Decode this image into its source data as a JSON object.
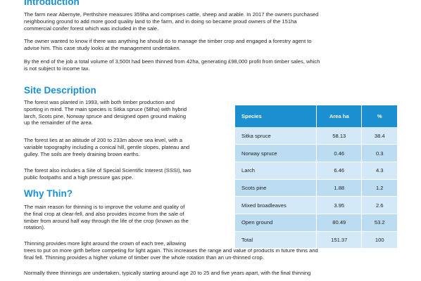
{
  "intro": {
    "heading": "Introduction",
    "p1": [
      "The farm near Abernyte, Perthshire measures 359ha and comprises cattle, sheep and arable. In 2017 the owners purchased",
      "neighbouring ground to add more good quality land to the farm, and in doing so became proud owners of the 151ha",
      "commercial conifer forest which was included in the sale."
    ],
    "p2": [
      "The owner wanted to know if there was anything he should do to manage the timber crop and engaged a forestry agent to",
      "advise him. This case study looks at the management undertaken."
    ],
    "p3": [
      "By the end of the job a total volume of 3,500t had been thinned from 42ha, generating £98,000 profit from timber sales, which",
      "is not subject to income tax."
    ]
  },
  "site": {
    "heading": "Site Description",
    "p1": [
      "The forest was planted in 1993, with both timber production and",
      "sporting in mind.  The main species is Sitka spruce (58ha) with hybrid",
      "larch, Scots pine, Norway spruce and designed open ground making",
      "up the remainder of the area."
    ],
    "p2": [
      "The forest lies at an altitude of 200 to 233m above sea level, with a",
      "variable topography including a conical hill, gentle slopes, plateau and",
      "gulley.  The soils are freely draining brown earths."
    ],
    "p3": [
      "The forest also includes a Site of Special Scientific Interest (SSSI), two",
      "public footpaths and a high pressure gas pipe."
    ]
  },
  "thin": {
    "heading": "Why Thin?",
    "p1": [
      "The main reason for thinning is to improve the volume and quality of",
      "the final crop at clear-fell, and also provides income from the sale of",
      "timber from around half way through the life of the crop (known as the",
      "rotation)."
    ],
    "p2": [
      "Thinning provides more light around the crown of each tree, allowing",
      "trees to put on more girth before competing for light again. This increases the range and value of products in future thins and",
      "final fell.  Thinning provides a higher volume of timber over the whole rotation than an un-thinned crop."
    ],
    "p3": [
      "Normally three thinnings are undertaken, typically starting around age 20 to 25 and five years apart, with the final thinning"
    ]
  },
  "table": {
    "headers": [
      "Species",
      "Area ha",
      "%"
    ],
    "rows": [
      [
        "Sitka spruce",
        "58.13",
        "38.4"
      ],
      [
        "Norway spruce",
        "0.46",
        "0.3"
      ],
      [
        "Larch",
        "6.46",
        "4.3"
      ],
      [
        "Scots pine",
        "1.88",
        "1.2"
      ],
      [
        "Mixed broadleaves",
        "3.95",
        "2.6"
      ],
      [
        "Open ground",
        "80.49",
        "53.2"
      ],
      [
        "Total",
        "151.37",
        "100"
      ]
    ]
  },
  "colors": {
    "heading": "#1a8fd1",
    "table_header": "#1b8fd0",
    "row_light": "#d3e9f7",
    "row_dark": "#bcdcf1"
  }
}
